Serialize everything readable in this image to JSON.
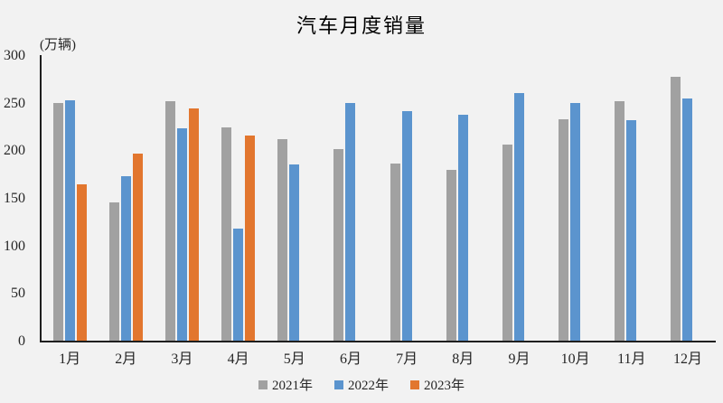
{
  "chart_data": {
    "type": "bar",
    "title": "汽车月度销量",
    "unit_label": "(万辆)",
    "xlabel": "",
    "ylabel": "万辆",
    "categories": [
      "1月",
      "2月",
      "3月",
      "4月",
      "5月",
      "6月",
      "7月",
      "8月",
      "9月",
      "10月",
      "11月",
      "12月"
    ],
    "series": [
      {
        "name": "2021年",
        "color": "#a1a1a1",
        "values": [
          250.3,
          145.5,
          252.6,
          225.2,
          212.8,
          201.5,
          186.4,
          179.9,
          206.7,
          233.3,
          252.2,
          278.6
        ]
      },
      {
        "name": "2022年",
        "color": "#5b94ce",
        "values": [
          253.1,
          173.7,
          223.4,
          118.1,
          186.2,
          250.2,
          242.0,
          238.3,
          261.0,
          250.5,
          232.8,
          255.6
        ]
      },
      {
        "name": "2023年",
        "color": "#e2762e",
        "values": [
          164.9,
          197.6,
          245.1,
          215.9,
          null,
          null,
          null,
          null,
          null,
          null,
          null,
          null
        ]
      }
    ],
    "ylim": [
      0,
      300
    ],
    "yticks": [
      0,
      50,
      100,
      150,
      200,
      250,
      300
    ],
    "grid": false,
    "legend_position": "bottom"
  },
  "colors": {
    "background": "#f2f2f2",
    "axis": "#1f1f1f",
    "text": "#262626",
    "title": "#000000"
  }
}
